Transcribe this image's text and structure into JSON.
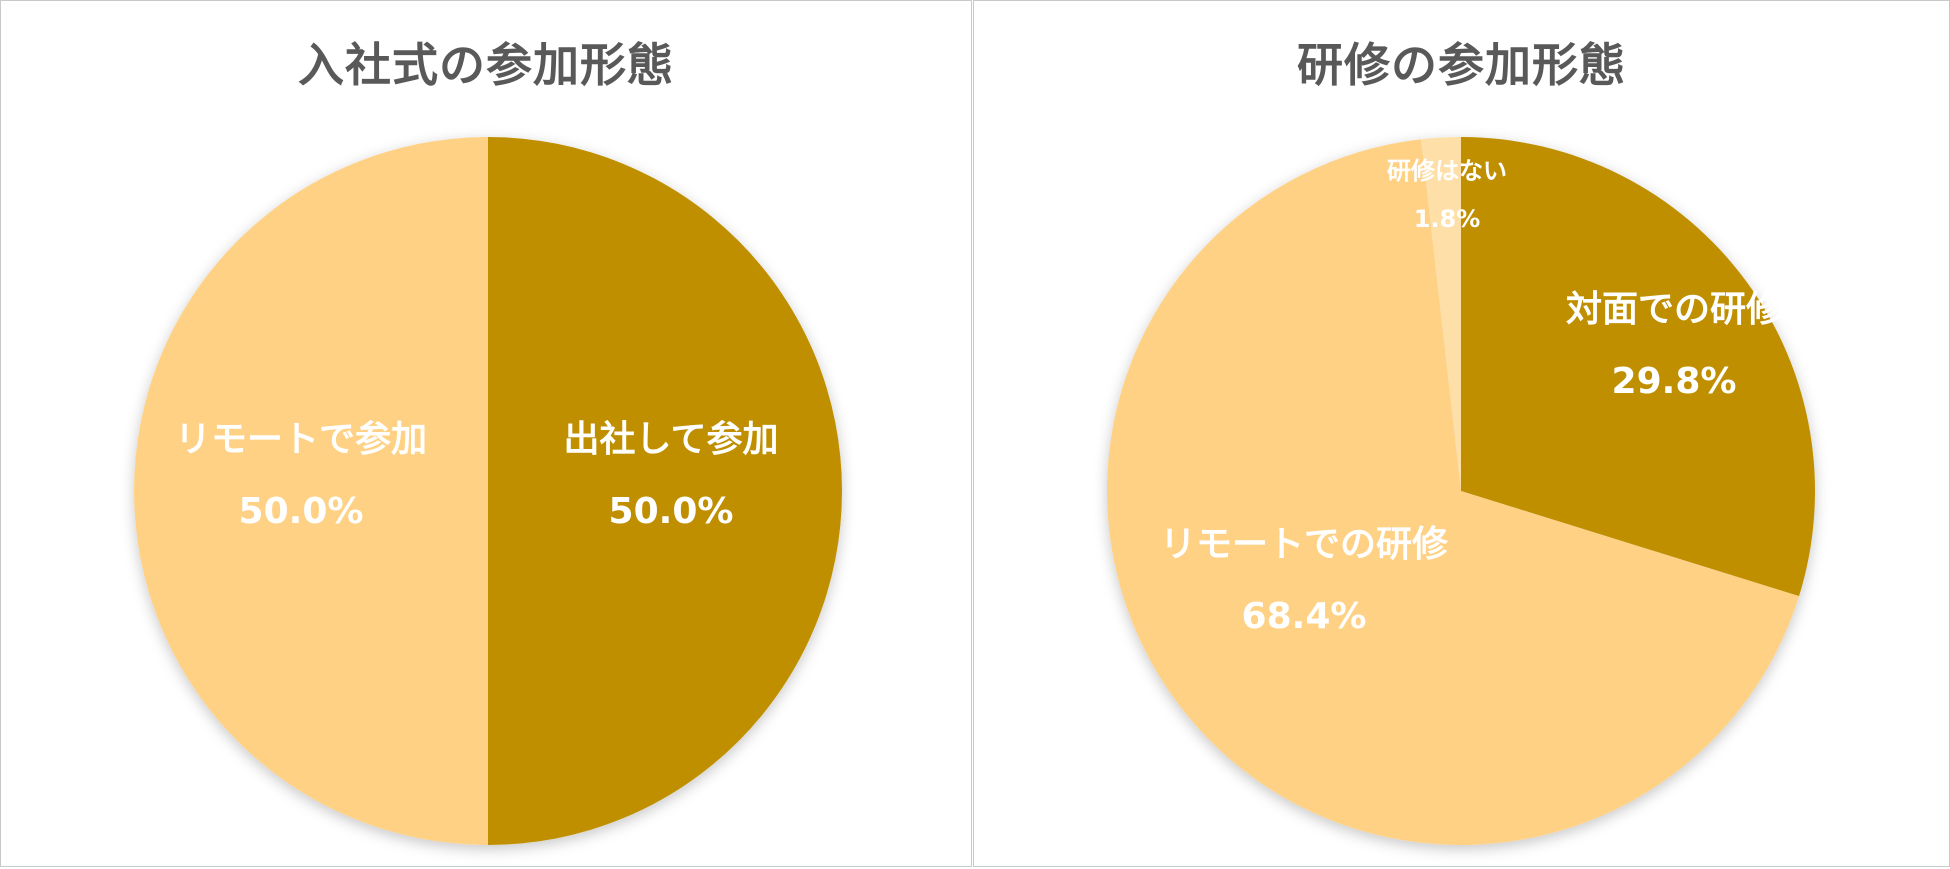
{
  "chart_data": [
    {
      "type": "pie",
      "title": "入社式の参加形態",
      "slices": [
        {
          "label": "出社して参加",
          "value": 50.0,
          "display": "50.0%",
          "color": "#BF8F00"
        },
        {
          "label": "リモートで参加",
          "value": 50.0,
          "display": "50.0%",
          "color": "#FFD185"
        }
      ]
    },
    {
      "type": "pie",
      "title": "研修の参加形態",
      "slices": [
        {
          "label": "対面での研修",
          "value": 29.8,
          "display": "29.8%",
          "color": "#BF8F00"
        },
        {
          "label": "リモートでの研修",
          "value": 68.4,
          "display": "68.4%",
          "color": "#FFD185"
        },
        {
          "label": "研修はない",
          "value": 1.8,
          "display": "1.8%",
          "color": "#FFDFA8"
        }
      ]
    }
  ]
}
